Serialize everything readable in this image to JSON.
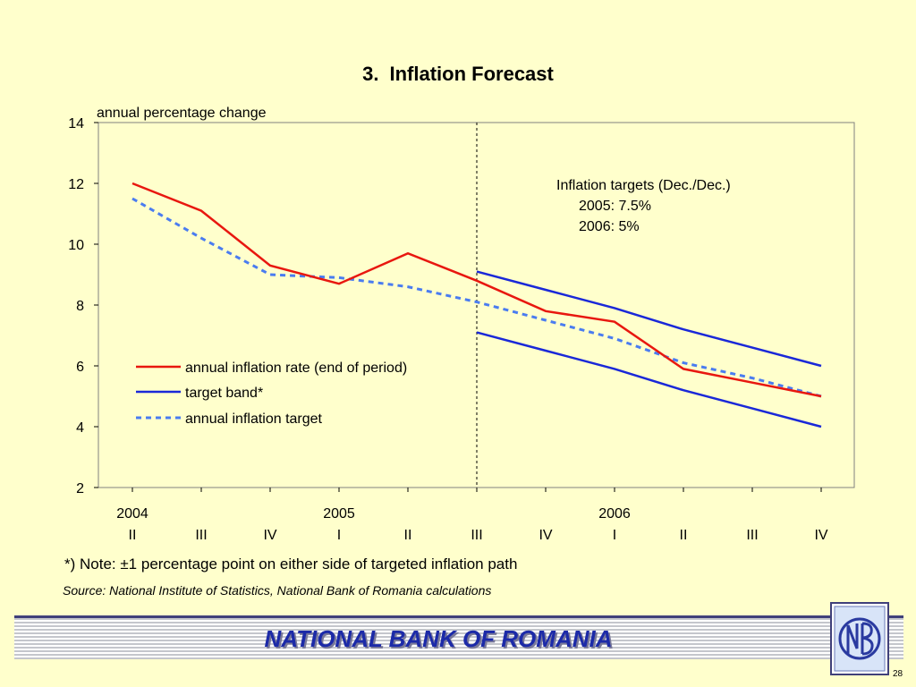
{
  "slide": {
    "title_number": "3.",
    "title": "Inflation Forecast",
    "note": "*) Note: ±1 percentage point on either side of targeted inflation path",
    "source": "Source: National Institute of Statistics, National Bank of Romania calculations",
    "bank_name": "NATIONAL BANK OF ROMANIA",
    "page_number": "28"
  },
  "chart_data": {
    "type": "line",
    "ylabel": "annual percentage change",
    "ylim": [
      2,
      14
    ],
    "yticks": [
      2,
      4,
      6,
      8,
      10,
      12,
      14
    ],
    "categories": [
      "II",
      "III",
      "IV",
      "I",
      "II",
      "III",
      "IV",
      "I",
      "II",
      "III",
      "IV"
    ],
    "year_labels": [
      {
        "label": "2004",
        "category_index": 0
      },
      {
        "label": "2005",
        "category_index": 3
      },
      {
        "label": "2006",
        "category_index": 7
      }
    ],
    "forecast_divider_index": 5,
    "annotation": {
      "title": "Inflation targets (Dec./Dec.)",
      "lines": [
        "2005: 7.5%",
        "2006: 5%"
      ]
    },
    "series": [
      {
        "name": "annual inflation rate (end of period)",
        "color": "#e8170f",
        "style": "solid",
        "values": [
          12.0,
          11.1,
          9.3,
          8.7,
          9.7,
          8.8,
          7.8,
          7.45,
          5.9,
          5.45,
          5.0
        ]
      },
      {
        "name": "target band*",
        "color": "#1a28d8",
        "style": "solid",
        "band": true,
        "upper": [
          null,
          null,
          null,
          null,
          null,
          9.1,
          8.5,
          7.9,
          7.2,
          6.6,
          6.0
        ],
        "lower": [
          null,
          null,
          null,
          null,
          null,
          7.1,
          6.5,
          5.9,
          5.2,
          4.6,
          4.0
        ]
      },
      {
        "name": "annual inflation target",
        "color": "#4a7cf0",
        "style": "dashed",
        "values": [
          11.5,
          10.2,
          9.0,
          8.9,
          8.6,
          8.1,
          7.5,
          6.9,
          6.1,
          5.6,
          5.0
        ]
      }
    ]
  }
}
